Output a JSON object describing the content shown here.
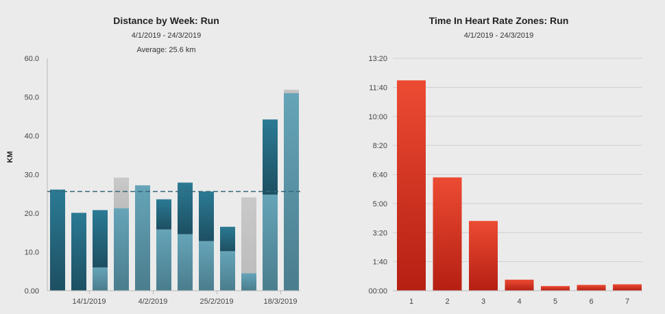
{
  "colors": {
    "background": "#ebebeb",
    "run_dark": "#1f5468",
    "run_mid": "#2b7690",
    "run_light": "#63a0b4",
    "run_light_bottom": "#4a7d8d",
    "planned": "#c4c4c4",
    "zone_red_top": "#eb4a32",
    "zone_red_bottom": "#b72114",
    "average_line": "#356678",
    "grid": "#cfcfcf",
    "axis": "#b8b8b8"
  },
  "chart_data": [
    {
      "type": "bar",
      "title": "Distance by Week: Run",
      "date_range": "4/1/2019 - 24/3/2019",
      "average_label": "Average: 25.6 km",
      "average": 25.6,
      "ylabel": "KM",
      "xlabel": "",
      "ylim": [
        0,
        60
      ],
      "yticks": [
        "0.00",
        "10.0",
        "20.0",
        "30.0",
        "40.0",
        "50.0",
        "60.0"
      ],
      "xtick_labels": [
        {
          "index": 2,
          "label": "14/1/2019"
        },
        {
          "index": 5,
          "label": "4/2/2019"
        },
        {
          "index": 8,
          "label": "25/2/2019"
        },
        {
          "index": 11,
          "label": "18/3/2019"
        }
      ],
      "grid": false,
      "series": [
        {
          "role": "light",
          "values": [
            0,
            0,
            6,
            21.3,
            27.2,
            15.8,
            14.6,
            12.8,
            10.2,
            4.5,
            24.8,
            51.0
          ]
        },
        {
          "role": "dark",
          "values": [
            26.1,
            20.1,
            14.8,
            0,
            0,
            7.8,
            13.3,
            12.8,
            6.3,
            0,
            19.4,
            0
          ]
        },
        {
          "role": "planned",
          "values": [
            0,
            0,
            0,
            7.9,
            0,
            0,
            0,
            0,
            0,
            19.6,
            0,
            0.9
          ]
        }
      ]
    },
    {
      "type": "bar",
      "title": "Time In Heart Rate Zones: Run",
      "date_range": "4/1/2019 - 24/3/2019",
      "xlabel": "",
      "ylabel": "",
      "categories": [
        "1",
        "2",
        "3",
        "4",
        "5",
        "6",
        "7"
      ],
      "values_minutes": [
        724,
        390,
        240,
        38,
        16,
        20,
        22
      ],
      "ylim_minutes": [
        0,
        800
      ],
      "yticks": [
        "00:00",
        "1:40",
        "3:20",
        "5:00",
        "6:40",
        "8:20",
        "10:00",
        "11:40",
        "13:20"
      ],
      "grid": true
    }
  ]
}
